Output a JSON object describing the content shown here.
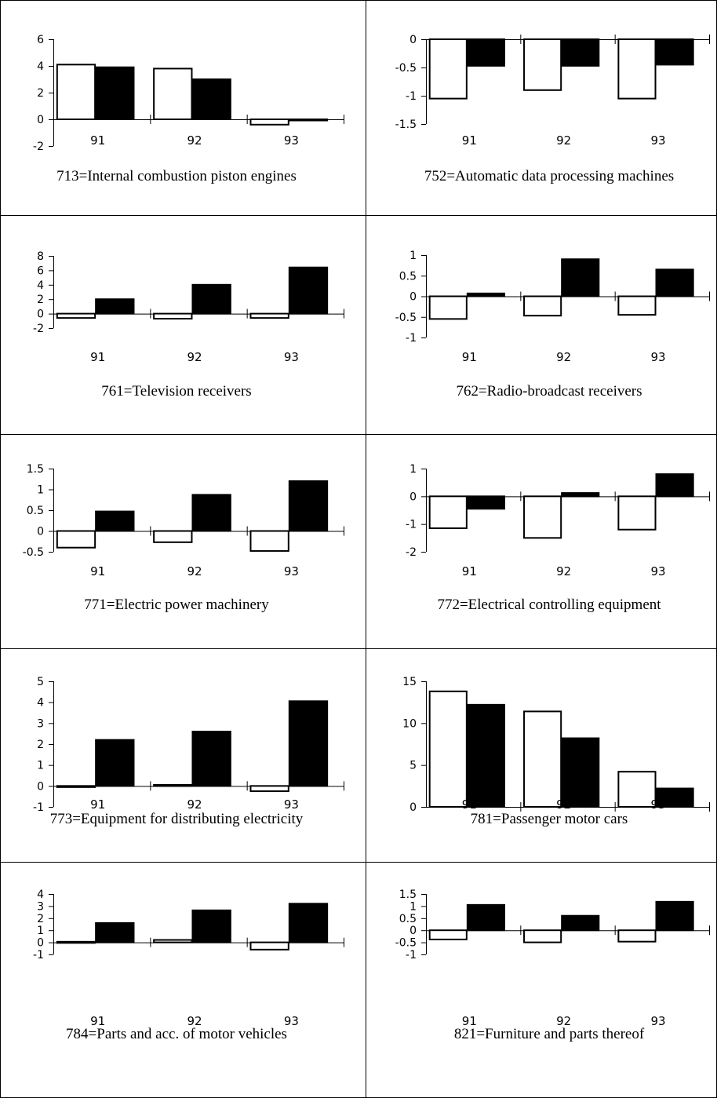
{
  "chart_data": [
    {
      "type": "bar",
      "title": "713=Internal combustion piston engines",
      "categories": [
        "91",
        "92",
        "93"
      ],
      "yticks": [
        "6",
        "4",
        "2",
        "0",
        "-2"
      ],
      "ylim": [
        -2,
        6
      ],
      "series": [
        {
          "values": [
            4.1,
            3.8,
            -0.4
          ],
          "color": "#ffffff"
        },
        {
          "values": [
            3.9,
            3.0,
            -0.05
          ],
          "color": "#000000"
        }
      ]
    },
    {
      "type": "bar",
      "title": "752=Automatic data processing machines",
      "categories": [
        "91",
        "92",
        "93"
      ],
      "yticks": [
        "0",
        "-0.5",
        "-1",
        "-1.5"
      ],
      "ylim": [
        -1.5,
        0
      ],
      "series": [
        {
          "values": [
            -1.05,
            -0.9,
            -1.05
          ],
          "color": "#ffffff"
        },
        {
          "values": [
            -0.47,
            -0.47,
            -0.45
          ],
          "color": "#000000"
        }
      ]
    },
    {
      "type": "bar",
      "title": "761=Television receivers",
      "categories": [
        "91",
        "92",
        "93"
      ],
      "yticks": [
        "8",
        "6",
        "4",
        "2",
        "0",
        "-2"
      ],
      "ylim": [
        -2,
        8
      ],
      "series": [
        {
          "values": [
            -0.6,
            -0.7,
            -0.6
          ],
          "color": "#ffffff"
        },
        {
          "values": [
            2.0,
            4.0,
            6.4
          ],
          "color": "#000000"
        }
      ]
    },
    {
      "type": "bar",
      "title": "762=Radio-broadcast receivers",
      "categories": [
        "91",
        "92",
        "93"
      ],
      "yticks": [
        "1",
        "0.5",
        "0",
        "-0.5",
        "-1"
      ],
      "ylim": [
        -1,
        1
      ],
      "series": [
        {
          "values": [
            -0.55,
            -0.47,
            -0.45
          ],
          "color": "#ffffff"
        },
        {
          "values": [
            0.07,
            0.9,
            0.65
          ],
          "color": "#000000"
        }
      ]
    },
    {
      "type": "bar",
      "title": "771=Electric power machinery",
      "categories": [
        "91",
        "92",
        "93"
      ],
      "yticks": [
        "1.5",
        "1",
        "0.5",
        "0",
        "-0.5"
      ],
      "ylim": [
        -0.5,
        1.5
      ],
      "series": [
        {
          "values": [
            -0.4,
            -0.27,
            -0.48
          ],
          "color": "#ffffff"
        },
        {
          "values": [
            0.47,
            0.87,
            1.2
          ],
          "color": "#000000"
        }
      ]
    },
    {
      "type": "bar",
      "title": "772=Electrical controlling equipment",
      "categories": [
        "91",
        "92",
        "93"
      ],
      "yticks": [
        "1",
        "0",
        "-1",
        "-2"
      ],
      "ylim": [
        -2,
        1
      ],
      "series": [
        {
          "values": [
            -1.15,
            -1.5,
            -1.2
          ],
          "color": "#ffffff"
        },
        {
          "values": [
            -0.45,
            0.12,
            0.8
          ],
          "color": "#000000"
        }
      ]
    },
    {
      "type": "bar",
      "title": "773=Equipment for distributing electricity",
      "categories": [
        "91",
        "92",
        "93"
      ],
      "yticks": [
        "5",
        "4",
        "3",
        "2",
        "1",
        "0",
        "-1"
      ],
      "ylim": [
        -1,
        5
      ],
      "series": [
        {
          "values": [
            -0.03,
            0.05,
            -0.25
          ],
          "color": "#ffffff"
        },
        {
          "values": [
            2.2,
            2.6,
            4.05
          ],
          "color": "#000000"
        }
      ]
    },
    {
      "type": "bar",
      "title": "781=Passenger motor cars",
      "categories": [
        "91",
        "92",
        "93"
      ],
      "yticks": [
        "15",
        "10",
        "5",
        "0"
      ],
      "ylim": [
        0,
        15
      ],
      "series": [
        {
          "values": [
            13.8,
            11.4,
            4.2
          ],
          "color": "#ffffff"
        },
        {
          "values": [
            12.2,
            8.2,
            2.2
          ],
          "color": "#000000"
        }
      ]
    },
    {
      "type": "bar",
      "title": "784=Parts and acc. of motor vehicles",
      "categories": [
        "91",
        "92",
        "93"
      ],
      "yticks": [
        "4",
        "3",
        "2",
        "1",
        "0",
        "-1"
      ],
      "ylim": [
        -1,
        4
      ],
      "series": [
        {
          "values": [
            0.05,
            0.2,
            -0.6
          ],
          "color": "#ffffff"
        },
        {
          "values": [
            1.6,
            2.65,
            3.2
          ],
          "color": "#000000"
        }
      ]
    },
    {
      "type": "bar",
      "title": "821=Furniture and parts thereof",
      "categories": [
        "91",
        "92",
        "93"
      ],
      "yticks": [
        "1.5",
        "1",
        "0.5",
        "0",
        "-0.5",
        "-1"
      ],
      "ylim": [
        -1,
        1.5
      ],
      "series": [
        {
          "values": [
            -0.38,
            -0.5,
            -0.47
          ],
          "color": "#ffffff"
        },
        {
          "values": [
            1.05,
            0.6,
            1.18
          ],
          "color": "#000000"
        }
      ]
    }
  ]
}
